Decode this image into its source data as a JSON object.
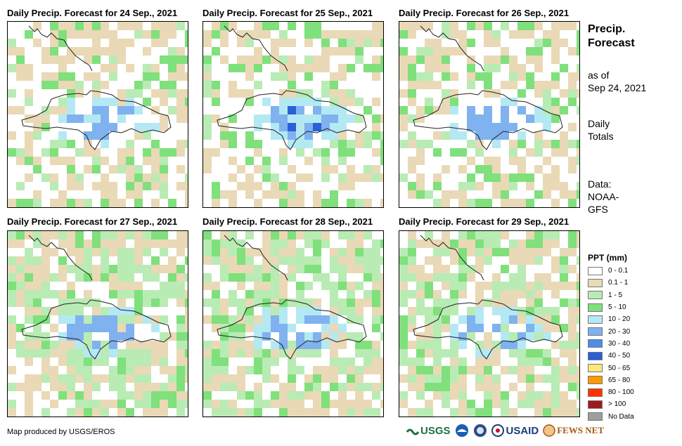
{
  "panels": [
    {
      "title": "Daily Precip. Forecast for 24 Sep., 2021",
      "seed": 24
    },
    {
      "title": "Daily Precip. Forecast for 25 Sep., 2021",
      "seed": 25
    },
    {
      "title": "Daily Precip. Forecast for 26 Sep., 2021",
      "seed": 26
    },
    {
      "title": "Daily Precip. Forecast for 27 Sep., 2021",
      "seed": 27
    },
    {
      "title": "Daily Precip. Forecast for 28 Sep., 2021",
      "seed": 28
    },
    {
      "title": "Daily Precip. Forecast for 29 Sep., 2021",
      "seed": 29
    }
  ],
  "side": {
    "title_line1": "Precip.",
    "title_line2": "Forecast",
    "asof_line1": "as of",
    "asof_line2": "Sep 24, 2021",
    "daily_line1": "Daily",
    "daily_line2": "Totals",
    "data_line1": "Data:",
    "data_line2": "NOAA-",
    "data_line3": "GFS"
  },
  "legend": {
    "title": "PPT (mm)",
    "items": [
      {
        "label": "0 - 0.1",
        "color": "#ffffff"
      },
      {
        "label": "0.1 - 1",
        "color": "#e9d9b6"
      },
      {
        "label": "1 - 5",
        "color": "#b9ebb4"
      },
      {
        "label": "5 - 10",
        "color": "#7fe07c"
      },
      {
        "label": "10 - 20",
        "color": "#b4e9f4"
      },
      {
        "label": "20 - 30",
        "color": "#7fb2ee"
      },
      {
        "label": "30 - 40",
        "color": "#4d8de6"
      },
      {
        "label": "40 - 50",
        "color": "#2b5fd8"
      },
      {
        "label": "50 - 65",
        "color": "#ffe680"
      },
      {
        "label": "65 - 80",
        "color": "#ff9900"
      },
      {
        "label": "80 - 100",
        "color": "#ff3300"
      },
      {
        "label": "> 100",
        "color": "#a11a1a"
      },
      {
        "label": "No Data",
        "color": "#9e9e9e"
      }
    ]
  },
  "credit": "Map produced by USGS/EROS",
  "logos": {
    "usgs": "USGS",
    "usaid": "USAID",
    "fewsnet": "FEWS NET"
  }
}
